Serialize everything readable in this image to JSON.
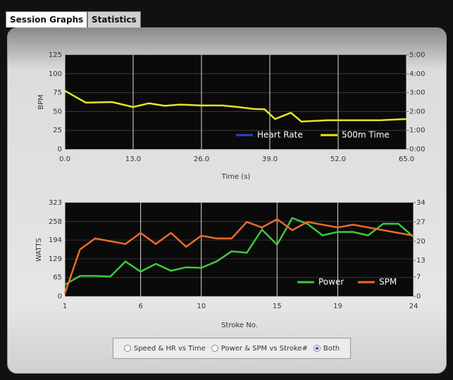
{
  "tabs": [
    {
      "label": "Session Graphs",
      "active": true
    },
    {
      "label": "Statistics",
      "active": false
    }
  ],
  "chart_data": [
    {
      "type": "line",
      "xlabel": "Time (s)",
      "ylabel": "BPM",
      "x": [
        0,
        4,
        9,
        13,
        16,
        19,
        22,
        26,
        30,
        33,
        36,
        38,
        40,
        43,
        45,
        50,
        55,
        60,
        65
      ],
      "xlim": [
        0,
        65
      ],
      "xticks": [
        {
          "value": 0,
          "label": "0.0"
        },
        {
          "value": 13,
          "label": "13.0"
        },
        {
          "value": 26,
          "label": "26.0"
        },
        {
          "value": 39,
          "label": "39.0"
        },
        {
          "value": 52,
          "label": "52.0"
        },
        {
          "value": 65,
          "label": "65.0"
        }
      ],
      "ylim": [
        0,
        125
      ],
      "yticks": [
        0,
        25,
        50,
        75,
        100,
        125
      ],
      "y2lim": [
        0,
        300
      ],
      "y2ticks": [
        {
          "value": 0,
          "label": "0:00"
        },
        {
          "value": 60,
          "label": "1:00"
        },
        {
          "value": 120,
          "label": "2:00"
        },
        {
          "value": 180,
          "label": "3:00"
        },
        {
          "value": 240,
          "label": "4:00"
        },
        {
          "value": 300,
          "label": "5:00"
        }
      ],
      "grid": true,
      "legend": "lower right",
      "series": [
        {
          "name": "Heart Rate",
          "color": "#3b3bd6",
          "values": [
            null,
            null,
            null,
            null,
            null,
            null,
            null,
            null,
            null,
            null,
            null,
            null,
            null,
            null,
            null,
            null,
            null,
            null,
            null
          ]
        },
        {
          "name": "500m Time",
          "color": "#e6e61e",
          "axis": "y2",
          "values": [
            186,
            148,
            150,
            134,
            146,
            138,
            142,
            139,
            139,
            134,
            128,
            127,
            96,
            116,
            88,
            92,
            92,
            92,
            96
          ]
        }
      ]
    },
    {
      "type": "line",
      "xlabel": "Stroke No.",
      "ylabel": "WATTS",
      "x": [
        1,
        2,
        3,
        4,
        5,
        6,
        7,
        8,
        9,
        10,
        11,
        12,
        13,
        14,
        15,
        16,
        17,
        18,
        19,
        20,
        21,
        22,
        23,
        24
      ],
      "xlim": [
        1,
        24
      ],
      "xticks": [
        1,
        6,
        10,
        15,
        19,
        24
      ],
      "ylim": [
        0,
        323
      ],
      "yticks": [
        0,
        65,
        129,
        194,
        258,
        323
      ],
      "y2lim": [
        0,
        34
      ],
      "y2ticks": [
        0,
        7,
        13,
        20,
        27,
        34
      ],
      "grid": true,
      "legend": "lower right",
      "series": [
        {
          "name": "Power",
          "color": "#3ec83e",
          "values": [
            40,
            70,
            70,
            68,
            120,
            85,
            112,
            88,
            100,
            98,
            120,
            155,
            150,
            230,
            178,
            270,
            250,
            210,
            222,
            222,
            210,
            250,
            250,
            205
          ]
        },
        {
          "name": "SPM",
          "color": "#ee6a2a",
          "axis": "y2",
          "values": [
            1,
            17,
            21,
            20,
            19,
            23,
            19,
            23,
            18,
            22,
            21,
            21,
            27,
            25,
            28,
            24,
            27,
            26,
            25,
            26,
            25,
            24,
            23,
            22
          ]
        }
      ]
    }
  ],
  "view_options": {
    "options": [
      "Speed & HR vs Time",
      "Power & SPM vs Stroke#",
      "Both"
    ],
    "selected": 2
  }
}
